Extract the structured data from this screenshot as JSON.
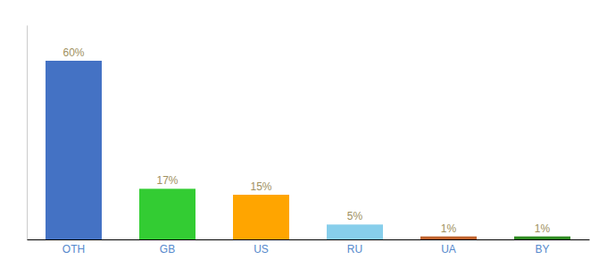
{
  "chart_data": {
    "type": "bar",
    "categories": [
      "OTH",
      "GB",
      "US",
      "RU",
      "UA",
      "BY"
    ],
    "values": [
      60,
      17,
      15,
      5,
      1,
      1
    ],
    "value_labels": [
      "60%",
      "17%",
      "15%",
      "5%",
      "1%",
      "1%"
    ],
    "colors": [
      "#4472C4",
      "#33CC33",
      "#FFA500",
      "#87CEEB",
      "#C0622B",
      "#2E8B20"
    ],
    "ylim": [
      0,
      72
    ],
    "grid": false,
    "data_labels": true,
    "tick_labels": "x"
  }
}
